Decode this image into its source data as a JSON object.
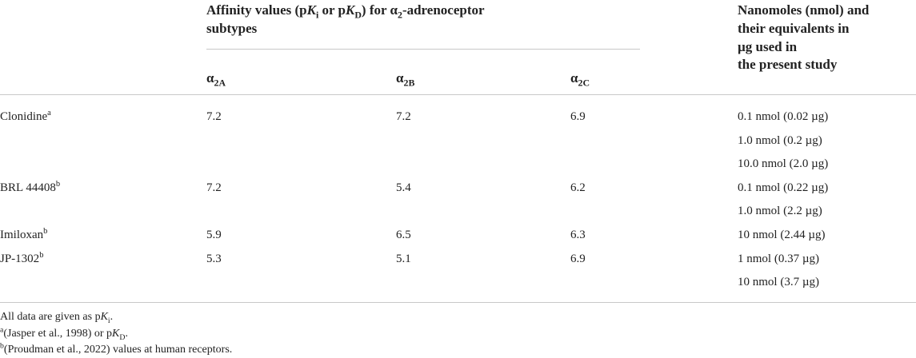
{
  "table": {
    "header": {
      "affinity": [
        "Affinity values (p",
        "K",
        "i",
        " or p",
        "K",
        "D",
        ") for α",
        "2",
        "-adrenoceptor"
      ],
      "affinity_line2": "subtypes",
      "subtypes": [
        [
          "α",
          "2A"
        ],
        [
          "α",
          "2B"
        ],
        [
          "α",
          "2C"
        ]
      ],
      "amounts": [
        "Nanomoles (nmol) and",
        "their equivalents in",
        "µg used in",
        "the present study"
      ]
    },
    "rows": [
      {
        "drug": "Clonidine",
        "note": "a",
        "values": [
          7.2,
          7.2,
          6.9
        ],
        "amounts": [
          "0.1 nmol (0.02 µg)",
          "1.0 nmol (0.2 µg)",
          "10.0 nmol (2.0 µg)"
        ]
      },
      {
        "drug": "BRL 44408",
        "note": "b",
        "values": [
          7.2,
          5.4,
          6.2
        ],
        "amounts": [
          "0.1 nmol (0.22 µg)",
          "1.0 nmol (2.2 µg)"
        ]
      },
      {
        "drug": "Imiloxan",
        "note": "b",
        "values": [
          5.9,
          6.5,
          6.3
        ],
        "amounts": [
          "10 nmol (2.44 µg)"
        ]
      },
      {
        "drug": "JP-1302",
        "note": "b",
        "values": [
          5.3,
          5.1,
          6.9
        ],
        "amounts": [
          "1 nmol (0.37 µg)",
          "10 nmol (3.7 µg)"
        ]
      }
    ]
  },
  "footnotes": [
    [
      "All data are given as p",
      "K",
      "i",
      "."
    ],
    [
      "a",
      "(Jasper et al., 1998) or p",
      "K",
      "D",
      "."
    ],
    [
      "b",
      "(Proudman et al., 2022) values at human receptors."
    ]
  ]
}
